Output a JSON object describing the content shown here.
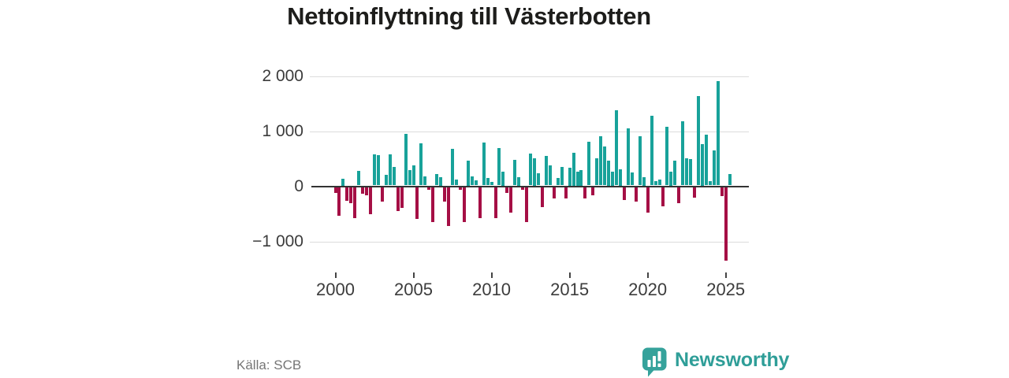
{
  "header": {
    "title": "Nettoinflyttning till Västerbotten"
  },
  "footer": {
    "source": "Källa: SCB",
    "brand_name": "Newsworthy"
  },
  "colors": {
    "positive": "#18a29a",
    "negative": "#a50f45",
    "brand": "#35a29b",
    "brand_text": "#2f9e98",
    "grid": "#dcdcdc",
    "zero_line": "#333333",
    "axis_text": "#3c3c3c",
    "title_text": "#1d1d1b",
    "source_text": "#757575"
  },
  "chart_data": {
    "type": "bar",
    "title": "Nettoinflyttning till Västerbotten",
    "frequency": "quarterly",
    "start_period": "2000Q1",
    "end_period": "2025Q2",
    "grid": "horizontal",
    "legend": "none",
    "ylim": [
      -1500,
      2150
    ],
    "y_ticks": [
      {
        "label": "2 000",
        "value": 2000
      },
      {
        "label": "1 000",
        "value": 1000
      },
      {
        "label": "0",
        "value": 0
      },
      {
        "label": "−1 000",
        "value": -1000
      }
    ],
    "x_ticks": [
      {
        "label": "2000",
        "year": 2000
      },
      {
        "label": "2005",
        "year": 2005
      },
      {
        "label": "2010",
        "year": 2010
      },
      {
        "label": "2015",
        "year": 2015
      },
      {
        "label": "2020",
        "year": 2020
      },
      {
        "label": "2025",
        "year": 2025
      }
    ],
    "values": [
      -100,
      -525,
      125,
      -250,
      -290,
      -565,
      260,
      -120,
      -155,
      -490,
      560,
      545,
      -265,
      190,
      570,
      340,
      -430,
      -380,
      930,
      285,
      360,
      -580,
      770,
      165,
      -50,
      -630,
      205,
      150,
      -270,
      -700,
      665,
      110,
      -50,
      -630,
      450,
      160,
      90,
      -560,
      780,
      135,
      60,
      -570,
      680,
      250,
      -105,
      -460,
      465,
      150,
      -45,
      -630,
      585,
      500,
      215,
      -365,
      540,
      360,
      -200,
      140,
      340,
      -205,
      325,
      600,
      250,
      275,
      -200,
      790,
      -145,
      490,
      895,
      710,
      450,
      250,
      1360,
      300,
      -240,
      1040,
      230,
      -270,
      890,
      150,
      -460,
      1260,
      85,
      110,
      -345,
      1060,
      250,
      445,
      -295,
      1165,
      490,
      480,
      -190,
      1620,
      750,
      920,
      85,
      640,
      1895,
      -170,
      -1330,
      210
    ]
  }
}
